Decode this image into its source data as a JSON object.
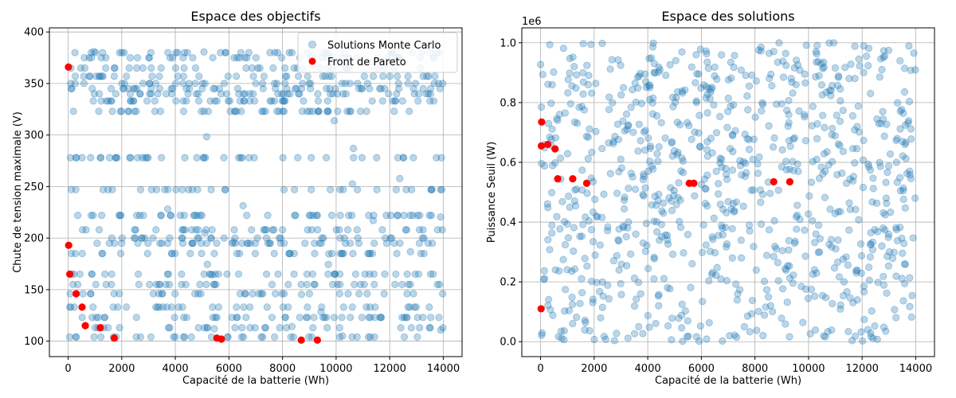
{
  "figure": {
    "background": "#ffffff"
  },
  "chart_data": [
    {
      "type": "scatter",
      "title": "Espace des objectifs",
      "xlabel": "Capacité de la batterie (Wh)",
      "ylabel": "Chute de tension maximale (V)",
      "xlim": [
        -700,
        14700
      ],
      "ylim": [
        85,
        404
      ],
      "xticks": [
        0,
        2000,
        4000,
        6000,
        8000,
        10000,
        12000,
        14000
      ],
      "yticks": [
        100,
        150,
        200,
        250,
        300,
        350,
        400
      ],
      "xtick_labels": [
        "0",
        "2000",
        "4000",
        "6000",
        "8000",
        "10000",
        "12000",
        "14000"
      ],
      "ytick_labels": [
        "100",
        "150",
        "200",
        "250",
        "300",
        "350",
        "400"
      ],
      "offset_label": "",
      "grid": true,
      "legend": {
        "position": "top-right",
        "entries": [
          "Solutions Monte Carlo",
          "Front de Pareto"
        ]
      },
      "series": [
        {
          "name": "Solutions Monte Carlo",
          "color": "#1f77b4",
          "alpha": 0.3,
          "marker": "circle",
          "count": 900,
          "x_range": [
            0,
            14000
          ],
          "y_levels": [
            104,
            113,
            123,
            133,
            146,
            155,
            165,
            185,
            195,
            200,
            208,
            222,
            247,
            278,
            323,
            333,
            340,
            345,
            350,
            357,
            365,
            375,
            380
          ],
          "y_range": [
            100,
            385
          ]
        },
        {
          "name": "Front de Pareto",
          "color": "#ff0000",
          "marker": "circle",
          "points": [
            [
              10,
              366
            ],
            [
              20,
              193
            ],
            [
              60,
              165
            ],
            [
              300,
              146
            ],
            [
              520,
              133
            ],
            [
              640,
              115
            ],
            [
              1200,
              113
            ],
            [
              1720,
              103
            ],
            [
              5550,
              103
            ],
            [
              5720,
              102
            ],
            [
              8700,
              101
            ],
            [
              9300,
              101
            ]
          ]
        }
      ]
    },
    {
      "type": "scatter",
      "title": "Espace des solutions",
      "xlabel": "Capacité de la batterie (Wh)",
      "ylabel": "Puissance Seuil (W)",
      "xlim": [
        -700,
        14700
      ],
      "ylim": [
        -0.05,
        1.05
      ],
      "xticks": [
        0,
        2000,
        4000,
        6000,
        8000,
        10000,
        12000,
        14000
      ],
      "yticks": [
        0.0,
        0.2,
        0.4,
        0.6,
        0.8,
        1.0
      ],
      "xtick_labels": [
        "0",
        "2000",
        "4000",
        "6000",
        "8000",
        "10000",
        "12000",
        "14000"
      ],
      "ytick_labels": [
        "0.0",
        "0.2",
        "0.4",
        "0.6",
        "0.8",
        "1.0"
      ],
      "offset_label": "1e6",
      "grid": true,
      "series": [
        {
          "name": "Solutions Monte Carlo",
          "color": "#1f77b4",
          "alpha": 0.3,
          "marker": "circle",
          "count": 900,
          "x_range": [
            0,
            14000
          ],
          "y_range": [
            0.0,
            1.0
          ]
        },
        {
          "name": "Front de Pareto",
          "color": "#ff0000",
          "marker": "circle",
          "points": [
            [
              20,
              0.11
            ],
            [
              30,
              0.655
            ],
            [
              40,
              0.735
            ],
            [
              270,
              0.66
            ],
            [
              540,
              0.645
            ],
            [
              640,
              0.545
            ],
            [
              1200,
              0.545
            ],
            [
              1720,
              0.53
            ],
            [
              5550,
              0.53
            ],
            [
              5720,
              0.53
            ],
            [
              8700,
              0.535
            ],
            [
              9300,
              0.535
            ]
          ]
        }
      ]
    }
  ]
}
